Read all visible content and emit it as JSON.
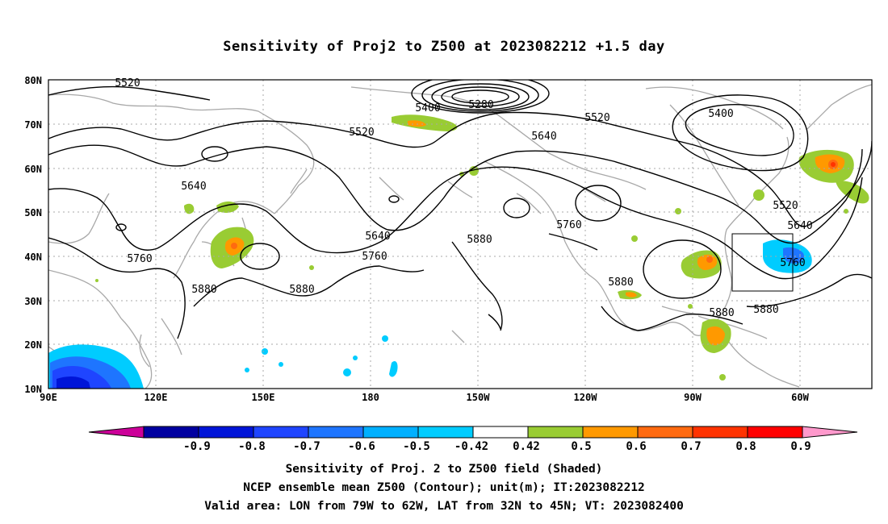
{
  "title": "Sensitivity of Proj2 to Z500 at 2023082212 +1.5 day",
  "lat_labels": [
    "80N",
    "70N",
    "60N",
    "50N",
    "40N",
    "30N",
    "20N",
    "10N"
  ],
  "lon_labels": [
    "90E",
    "120E",
    "150E",
    "180",
    "150W",
    "120W",
    "90W",
    "60W"
  ],
  "contour_labels": [
    {
      "id": "5520-nw",
      "text": "5520"
    },
    {
      "id": "5280",
      "text": "5280"
    },
    {
      "id": "5400-c",
      "text": "5400"
    },
    {
      "id": "5520-c",
      "text": "5520"
    },
    {
      "id": "5520-ne",
      "text": "5520"
    },
    {
      "id": "5400-ne",
      "text": "5400"
    },
    {
      "id": "5640-c",
      "text": "5640"
    },
    {
      "id": "5640-w",
      "text": "5640"
    },
    {
      "id": "5640-m",
      "text": "5640"
    },
    {
      "id": "5760-m",
      "text": "5760"
    },
    {
      "id": "5760-w",
      "text": "5760"
    },
    {
      "id": "5760-c",
      "text": "5760"
    },
    {
      "id": "5880-c",
      "text": "5880"
    },
    {
      "id": "5880-w",
      "text": "5880"
    },
    {
      "id": "5880-m",
      "text": "5880"
    },
    {
      "id": "5880-mx",
      "text": "5880"
    },
    {
      "id": "5880-car",
      "text": "5880"
    },
    {
      "id": "5880-e",
      "text": "5880"
    },
    {
      "id": "5520-e",
      "text": "5520"
    },
    {
      "id": "5640-e",
      "text": "5640"
    },
    {
      "id": "5760-e",
      "text": "5760"
    }
  ],
  "colorbar": {
    "labels": [
      "-0.9",
      "-0.8",
      "-0.7",
      "-0.6",
      "-0.5",
      "-0.42",
      "0.42",
      "0.5",
      "0.6",
      "0.7",
      "0.8",
      "0.9"
    ],
    "colors": [
      "#0000a0",
      "#0015d8",
      "#1f45ff",
      "#1e75ff",
      "#00b0ff",
      "#00ccff",
      "#ffffff",
      "#99cc33",
      "#ff9900",
      "#ff6a10",
      "#ff3300",
      "#ff0000",
      "#ff99cc"
    ],
    "low_end_color": "#cc0099"
  },
  "footer": {
    "line1": "Sensitivity of Proj. 2 to Z500 field (Shaded)",
    "line2": "NCEP ensemble mean Z500 (Contour); unit(m); IT:2023082212",
    "line3": "Valid area: LON from 79W to 62W, LAT from 32N to 45N; VT: 2023082400"
  }
}
